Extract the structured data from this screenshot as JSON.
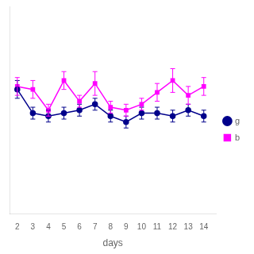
{
  "chart_data": {
    "type": "line",
    "xlabel": "days",
    "x": [
      2,
      3,
      4,
      5,
      6,
      7,
      8,
      9,
      10,
      11,
      12,
      13,
      14
    ],
    "series": [
      {
        "name": "g",
        "color": "#00008B",
        "marker": "circle",
        "line_style": "solid",
        "values": [
          62,
          54,
          53,
          54,
          55,
          57,
          53,
          51,
          54,
          54,
          53,
          55,
          53
        ],
        "errors": [
          3,
          2,
          2,
          2,
          2,
          2,
          2,
          2,
          2,
          2,
          2,
          2,
          2
        ]
      },
      {
        "name": "b",
        "color": "#FF00FF",
        "marker": "square",
        "line_style": "solid",
        "values": [
          63,
          62,
          55,
          65,
          58,
          64,
          56,
          55,
          57,
          61,
          65,
          60,
          63
        ],
        "errors": [
          3,
          3,
          2,
          3,
          2,
          4,
          2,
          2,
          2,
          3,
          4,
          3,
          3
        ]
      }
    ],
    "xlim": [
      1.5,
      14.8
    ],
    "xticks": [
      2,
      3,
      4,
      5,
      6,
      7,
      8,
      9,
      10,
      11,
      12,
      13,
      14
    ],
    "ylim": [
      20,
      90
    ],
    "yticks": [],
    "grid": false,
    "legend": "right",
    "tick_labels": "x"
  }
}
